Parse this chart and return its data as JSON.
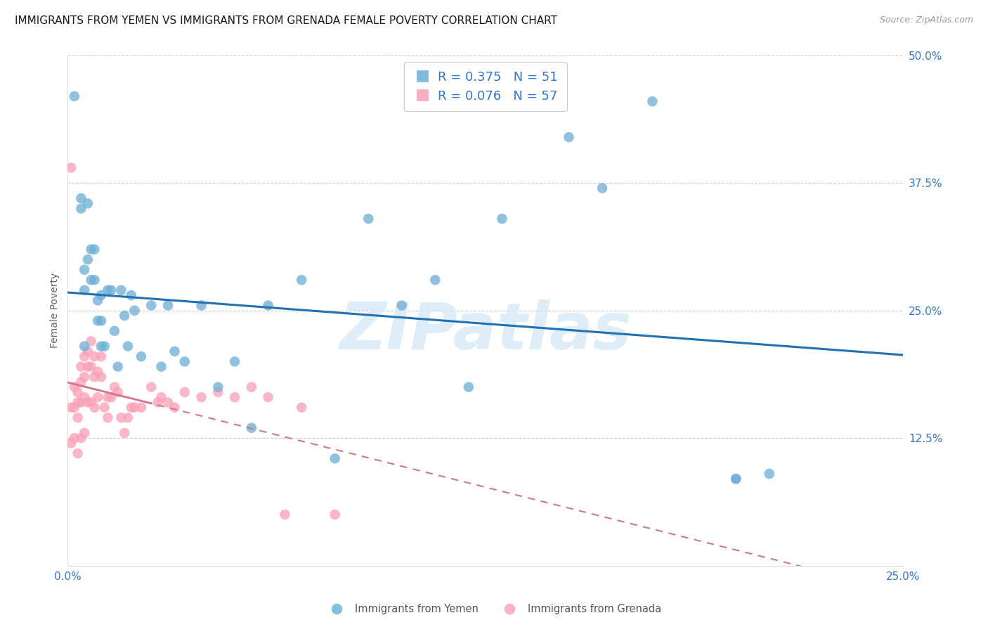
{
  "title": "IMMIGRANTS FROM YEMEN VS IMMIGRANTS FROM GRENADA FEMALE POVERTY CORRELATION CHART",
  "source": "Source: ZipAtlas.com",
  "ylabel": "Female Poverty",
  "xlim": [
    0.0,
    0.25
  ],
  "ylim": [
    0.0,
    0.5
  ],
  "xticks": [
    0.0,
    0.05,
    0.1,
    0.15,
    0.2,
    0.25
  ],
  "xticklabels": [
    "0.0%",
    "",
    "",
    "",
    "",
    "25.0%"
  ],
  "yticks_right": [
    0.0,
    0.125,
    0.25,
    0.375,
    0.5
  ],
  "yticklabels_right": [
    "",
    "12.5%",
    "25.0%",
    "37.5%",
    "50.0%"
  ],
  "legend_r1": "R = 0.375",
  "legend_n1": "N = 51",
  "legend_r2": "R = 0.076",
  "legend_n2": "N = 57",
  "color_yemen": "#6baed6",
  "color_grenada": "#fa9fb5",
  "trendline_yemen_color": "#2171b5",
  "trendline_grenada_color": "#d4768a",
  "background_color": "#ffffff",
  "grid_color": "#c8c8c8",
  "yemen_x": [
    0.002,
    0.004,
    0.004,
    0.005,
    0.005,
    0.006,
    0.006,
    0.007,
    0.007,
    0.008,
    0.008,
    0.009,
    0.009,
    0.01,
    0.01,
    0.011,
    0.012,
    0.013,
    0.014,
    0.015,
    0.016,
    0.017,
    0.018,
    0.019,
    0.02,
    0.022,
    0.025,
    0.028,
    0.03,
    0.032,
    0.035,
    0.04,
    0.045,
    0.05,
    0.055,
    0.06,
    0.07,
    0.08,
    0.09,
    0.1,
    0.11,
    0.12,
    0.13,
    0.15,
    0.16,
    0.175,
    0.2,
    0.2,
    0.21,
    0.005,
    0.01
  ],
  "yemen_y": [
    0.46,
    0.36,
    0.35,
    0.29,
    0.27,
    0.355,
    0.3,
    0.31,
    0.28,
    0.31,
    0.28,
    0.26,
    0.24,
    0.265,
    0.24,
    0.215,
    0.27,
    0.27,
    0.23,
    0.195,
    0.27,
    0.245,
    0.215,
    0.265,
    0.25,
    0.205,
    0.255,
    0.195,
    0.255,
    0.21,
    0.2,
    0.255,
    0.175,
    0.2,
    0.135,
    0.255,
    0.28,
    0.105,
    0.34,
    0.255,
    0.28,
    0.175,
    0.34,
    0.42,
    0.37,
    0.455,
    0.085,
    0.085,
    0.09,
    0.215,
    0.215
  ],
  "grenada_x": [
    0.001,
    0.001,
    0.001,
    0.002,
    0.002,
    0.002,
    0.003,
    0.003,
    0.003,
    0.003,
    0.004,
    0.004,
    0.004,
    0.004,
    0.005,
    0.005,
    0.005,
    0.005,
    0.006,
    0.006,
    0.006,
    0.007,
    0.007,
    0.007,
    0.008,
    0.008,
    0.008,
    0.009,
    0.009,
    0.01,
    0.01,
    0.011,
    0.012,
    0.012,
    0.013,
    0.014,
    0.015,
    0.016,
    0.017,
    0.018,
    0.019,
    0.02,
    0.022,
    0.025,
    0.027,
    0.028,
    0.03,
    0.032,
    0.035,
    0.04,
    0.045,
    0.05,
    0.055,
    0.06,
    0.065,
    0.07,
    0.08
  ],
  "grenada_y": [
    0.39,
    0.155,
    0.12,
    0.175,
    0.155,
    0.125,
    0.17,
    0.16,
    0.145,
    0.11,
    0.195,
    0.18,
    0.16,
    0.125,
    0.205,
    0.185,
    0.165,
    0.13,
    0.21,
    0.195,
    0.16,
    0.22,
    0.195,
    0.16,
    0.205,
    0.185,
    0.155,
    0.19,
    0.165,
    0.205,
    0.185,
    0.155,
    0.165,
    0.145,
    0.165,
    0.175,
    0.17,
    0.145,
    0.13,
    0.145,
    0.155,
    0.155,
    0.155,
    0.175,
    0.16,
    0.165,
    0.16,
    0.155,
    0.17,
    0.165,
    0.17,
    0.165,
    0.175,
    0.165,
    0.05,
    0.155,
    0.05
  ],
  "watermark": "ZIPatlas",
  "title_fontsize": 11,
  "axis_label_fontsize": 10,
  "tick_fontsize": 11,
  "legend_fontsize": 13
}
